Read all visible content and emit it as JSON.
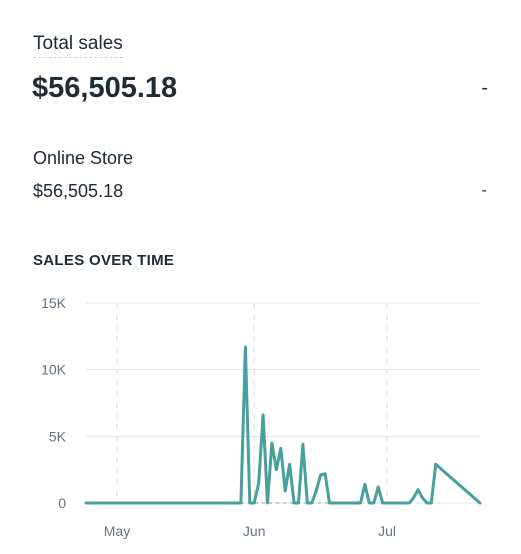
{
  "summary": {
    "total_label": "Total sales",
    "total_value": "$56,505.18",
    "total_change": "-"
  },
  "channel": {
    "name": "Online Store",
    "value": "$56,505.18",
    "change": "-"
  },
  "chart_title": "SALES OVER TIME",
  "colors": {
    "line": "#47a09a",
    "grid": "#dfe3e8",
    "text": "#212b36",
    "muted": "#637381"
  },
  "chart_data": {
    "type": "line",
    "title": "SALES OVER TIME",
    "xlabel": "",
    "ylabel": "",
    "ylim": [
      0,
      15000
    ],
    "y_ticks": [
      0,
      5000,
      10000,
      15000
    ],
    "y_tick_labels": [
      "0",
      "5K",
      "10K",
      "15K"
    ],
    "x_ticks": [
      {
        "label": "May",
        "x": "2019-05-01"
      },
      {
        "label": "Jun",
        "x": "2019-06-01"
      },
      {
        "label": "Jul",
        "x": "2019-07-01"
      }
    ],
    "x_range": [
      "2019-04-24",
      "2019-07-22"
    ],
    "grid": true,
    "series": [
      {
        "x": [
          "2019-04-24",
          "2019-05-29",
          "2019-05-30",
          "2019-05-31",
          "2019-06-01",
          "2019-06-02",
          "2019-06-03",
          "2019-06-04",
          "2019-06-05",
          "2019-06-06",
          "2019-06-07",
          "2019-06-08",
          "2019-06-09",
          "2019-06-10",
          "2019-06-11",
          "2019-06-12",
          "2019-06-13",
          "2019-06-14",
          "2019-06-15",
          "2019-06-16",
          "2019-06-17",
          "2019-06-18",
          "2019-06-19",
          "2019-06-20",
          "2019-06-25",
          "2019-06-26",
          "2019-06-27",
          "2019-06-28",
          "2019-06-29",
          "2019-06-30",
          "2019-07-06",
          "2019-07-07",
          "2019-07-08",
          "2019-07-09",
          "2019-07-10",
          "2019-07-11",
          "2019-07-12",
          "2019-07-22"
        ],
        "values": [
          0,
          0,
          11700,
          0,
          0,
          1500,
          6600,
          0,
          4500,
          2500,
          4100,
          900,
          2900,
          0,
          0,
          4400,
          0,
          0,
          900,
          2100,
          2200,
          0,
          0,
          0,
          0,
          1400,
          0,
          0,
          1200,
          0,
          0,
          400,
          1000,
          400,
          0,
          0,
          2900,
          0
        ]
      }
    ]
  }
}
